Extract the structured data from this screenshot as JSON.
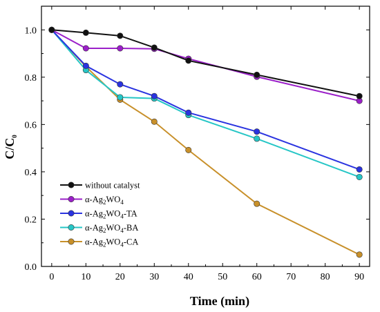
{
  "chart_data": {
    "type": "line",
    "xlabel": "Time (min)",
    "ylabel": {
      "main": "C/C",
      "sub": "0"
    },
    "xlim": [
      -3,
      93
    ],
    "ylim": [
      0.0,
      1.1
    ],
    "x_ticks": [
      "0",
      "10",
      "20",
      "30",
      "40",
      "50",
      "60",
      "70",
      "80",
      "90"
    ],
    "y_ticks": [
      "0.0",
      "0.2",
      "0.4",
      "0.6",
      "0.8",
      "1.0"
    ],
    "legend_position": "bottom-left",
    "series": [
      {
        "name": [
          {
            "t": "without catalyst"
          }
        ],
        "color": "#111111",
        "x": [
          0,
          10,
          20,
          30,
          40,
          60,
          90
        ],
        "y": [
          1.0,
          0.988,
          0.975,
          0.925,
          0.87,
          0.81,
          0.72
        ]
      },
      {
        "name": [
          {
            "t": "α-Ag"
          },
          {
            "t": "2",
            "sub": true
          },
          {
            "t": "WO"
          },
          {
            "t": "4",
            "sub": true
          }
        ],
        "color": "#9b1fc9",
        "x": [
          0,
          10,
          20,
          30,
          40,
          60,
          90
        ],
        "y": [
          1.0,
          0.922,
          0.922,
          0.92,
          0.878,
          0.802,
          0.7
        ]
      },
      {
        "name": [
          {
            "t": "α-Ag"
          },
          {
            "t": "2",
            "sub": true
          },
          {
            "t": "WO"
          },
          {
            "t": "4",
            "sub": true
          },
          {
            "t": "-TA"
          }
        ],
        "color": "#2a33e0",
        "x": [
          0,
          10,
          20,
          30,
          40,
          60,
          90
        ],
        "y": [
          1.0,
          0.848,
          0.77,
          0.72,
          0.65,
          0.57,
          0.41
        ]
      },
      {
        "name": [
          {
            "t": "α-Ag"
          },
          {
            "t": "2",
            "sub": true
          },
          {
            "t": "WO"
          },
          {
            "t": "4",
            "sub": true
          },
          {
            "t": "-BA"
          }
        ],
        "color": "#26c6c6",
        "x": [
          0,
          10,
          20,
          30,
          40,
          60,
          90
        ],
        "y": [
          1.0,
          0.83,
          0.715,
          0.71,
          0.64,
          0.54,
          0.378
        ]
      },
      {
        "name": [
          {
            "t": "α-Ag"
          },
          {
            "t": "2",
            "sub": true
          },
          {
            "t": "WO"
          },
          {
            "t": "4",
            "sub": true
          },
          {
            "t": "-CA"
          }
        ],
        "color": "#c8902a",
        "x": [
          0,
          10,
          20,
          30,
          40,
          60,
          90
        ],
        "y": [
          1.0,
          0.845,
          0.705,
          0.612,
          0.492,
          0.265,
          0.05
        ]
      }
    ]
  }
}
